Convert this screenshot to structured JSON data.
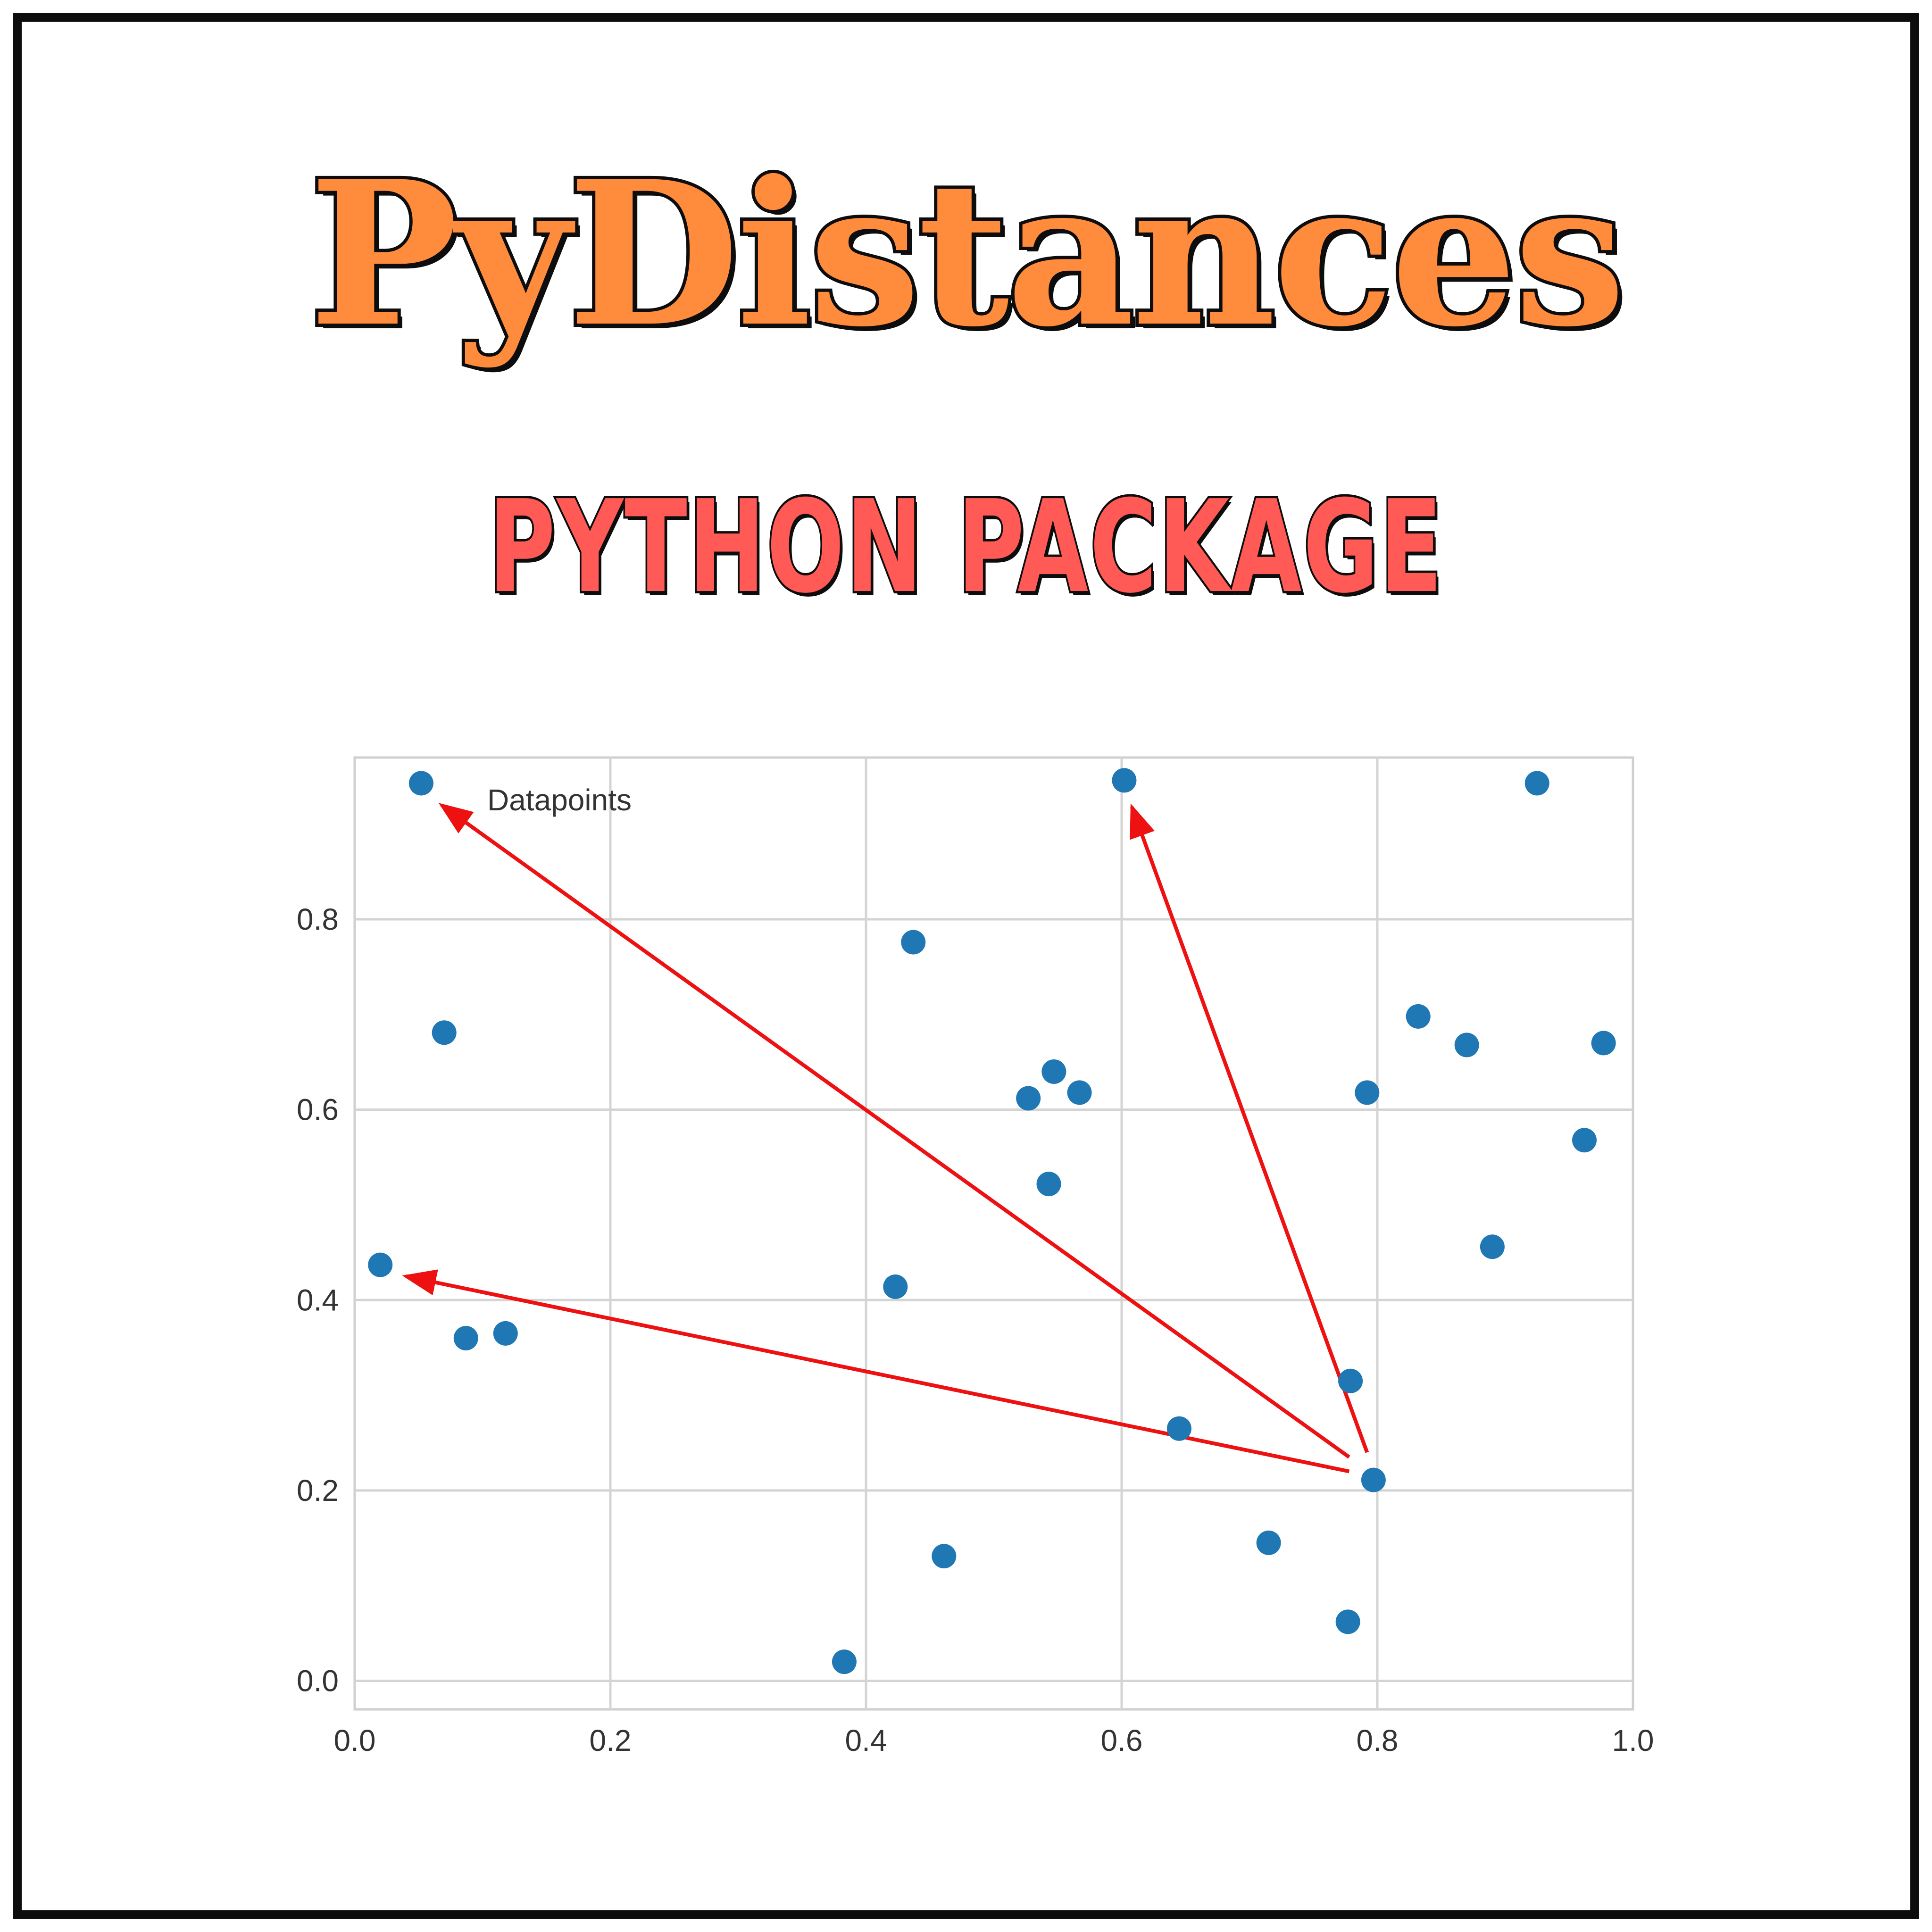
{
  "header": {
    "title": "PyDistances",
    "subtitle": "PYTHON PACKAGE"
  },
  "colors": {
    "title_fill": "#ff8c3d",
    "subtitle_fill": "#ff5a55",
    "point": "#1f77b4",
    "arrow": "#ee1111",
    "grid": "#d4d4d4"
  },
  "chart_data": {
    "type": "scatter",
    "title": "",
    "xlabel": "",
    "ylabel": "",
    "xlim": [
      0.0,
      1.0
    ],
    "ylim": [
      -0.03,
      0.97
    ],
    "xticks": [
      "0.0",
      "0.2",
      "0.4",
      "0.6",
      "0.8",
      "1.0"
    ],
    "yticks": [
      "0.0",
      "0.2",
      "0.4",
      "0.6",
      "0.8"
    ],
    "grid": true,
    "legend": {
      "position": "top-left",
      "entries": [
        "Datapoints"
      ]
    },
    "series": [
      {
        "name": "Datapoints",
        "points": [
          [
            0.052,
            0.943
          ],
          [
            0.602,
            0.946
          ],
          [
            0.925,
            0.943
          ],
          [
            0.437,
            0.776
          ],
          [
            0.07,
            0.681
          ],
          [
            0.832,
            0.698
          ],
          [
            0.87,
            0.668
          ],
          [
            0.977,
            0.67
          ],
          [
            0.547,
            0.64
          ],
          [
            0.527,
            0.612
          ],
          [
            0.567,
            0.618
          ],
          [
            0.792,
            0.618
          ],
          [
            0.962,
            0.568
          ],
          [
            0.543,
            0.522
          ],
          [
            0.89,
            0.456
          ],
          [
            0.02,
            0.437
          ],
          [
            0.423,
            0.414
          ],
          [
            0.087,
            0.36
          ],
          [
            0.118,
            0.365
          ],
          [
            0.779,
            0.315
          ],
          [
            0.645,
            0.265
          ],
          [
            0.797,
            0.211
          ],
          [
            0.461,
            0.131
          ],
          [
            0.715,
            0.145
          ],
          [
            0.777,
            0.062
          ],
          [
            0.383,
            0.02
          ]
        ]
      }
    ],
    "annotations": [
      {
        "type": "arrow",
        "from": [
          0.778,
          0.22
        ],
        "to": [
          0.04,
          0.425
        ]
      },
      {
        "type": "arrow",
        "from": [
          0.778,
          0.235
        ],
        "to": [
          0.068,
          0.92
        ]
      },
      {
        "type": "arrow",
        "from": [
          0.792,
          0.24
        ],
        "to": [
          0.608,
          0.918
        ]
      }
    ]
  }
}
